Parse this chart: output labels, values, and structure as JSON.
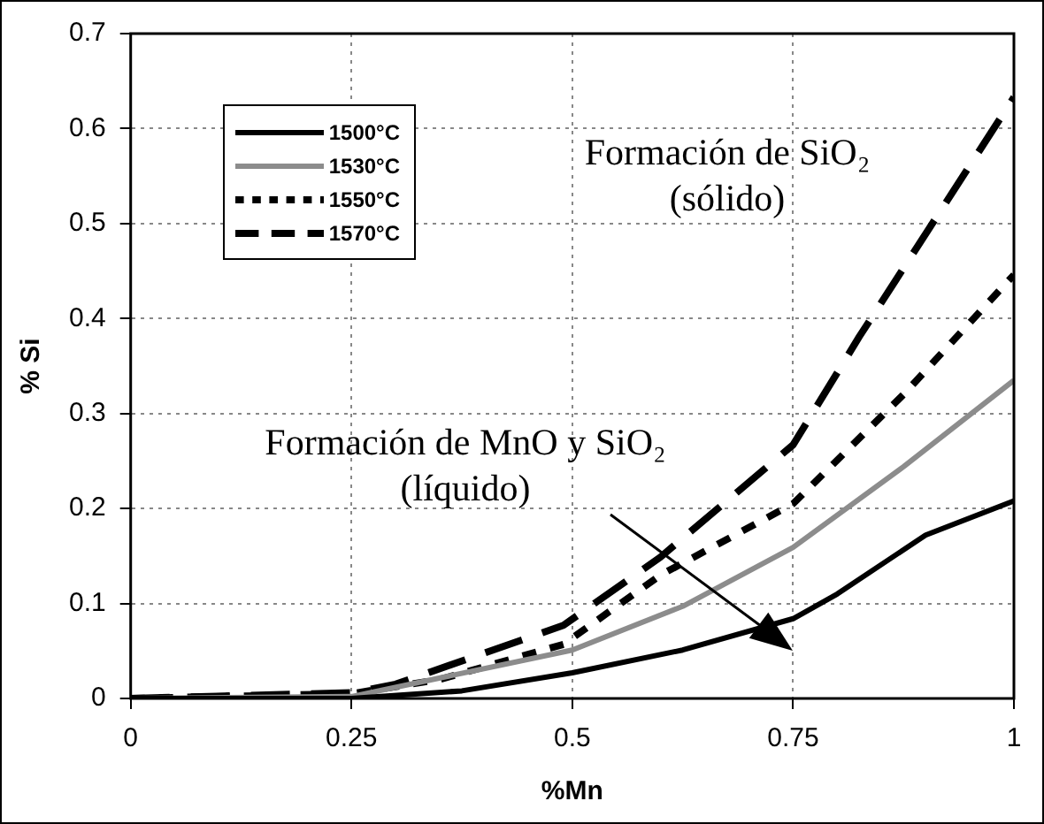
{
  "chart_data": {
    "type": "line",
    "xlabel": "%Mn",
    "ylabel": "% Si",
    "xlim": [
      0,
      1
    ],
    "xticks": [
      0,
      0.25,
      0.5,
      0.75,
      1
    ],
    "ylim": [
      0,
      0.7
    ],
    "yticks": [
      0,
      0.1,
      0.2,
      0.3,
      0.4,
      0.5,
      0.6,
      0.7
    ],
    "grid": true,
    "legend": "top left",
    "marker": "none",
    "annotations": [
      "Formación de SiO₂\n(sólido)",
      "Formación de MnO y SiO₂\n(líquido)"
    ],
    "series": [
      {
        "name": "1500°C",
        "color": "#000000",
        "line_style": "solid",
        "x": [
          0,
          0.25,
          0.375,
          0.5,
          0.625,
          0.75,
          0.8,
          0.9,
          1
        ],
        "values": [
          0,
          0,
          0.008,
          0.027,
          0.051,
          0.084,
          0.11,
          0.172,
          0.208
        ]
      },
      {
        "name": "1530°C",
        "color": "#8c8c8c",
        "line_style": "solid",
        "x": [
          0,
          0.25,
          0.5,
          0.625,
          0.75,
          0.875,
          1
        ],
        "values": [
          0,
          0.002,
          0.051,
          0.097,
          0.159,
          0.244,
          0.335
        ]
      },
      {
        "name": "1550°C",
        "color": "#000000",
        "line_style": "dotted",
        "x": [
          0,
          0.25,
          0.35,
          0.49,
          0.6,
          0.75,
          0.875,
          1
        ],
        "values": [
          0,
          0.005,
          0.02,
          0.057,
          0.13,
          0.205,
          0.32,
          0.446
        ]
      },
      {
        "name": "1570°C",
        "color": "#000000",
        "line_style": "dashed",
        "x": [
          0,
          0.25,
          0.3,
          0.49,
          0.6,
          0.75,
          0.825,
          1
        ],
        "values": [
          0,
          0.006,
          0.015,
          0.077,
          0.149,
          0.267,
          0.381,
          0.633
        ]
      }
    ]
  }
}
